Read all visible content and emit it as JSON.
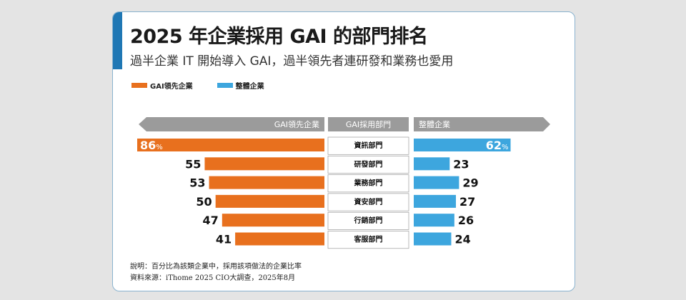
{
  "title": "2025 年企業採用 GAI 的部門排名",
  "subtitle": "過半企業 IT 開始導入 GAI，過半領先者連研發和業務也愛用",
  "colors": {
    "leader": "#e8701e",
    "overall": "#3da6de",
    "header": "#9b9b9b",
    "accent": "#1f77b4"
  },
  "chart_data": {
    "type": "bar",
    "categories": [
      "資訊部門",
      "研發部門",
      "業務部門",
      "資安部門",
      "行銷部門",
      "客服部門"
    ],
    "series": [
      {
        "name": "GAI領先企業",
        "values": [
          86,
          55,
          53,
          50,
          47,
          41
        ]
      },
      {
        "name": "整體企業",
        "values": [
          62,
          23,
          29,
          27,
          26,
          24
        ]
      }
    ],
    "percent_suffix": "%",
    "header_labels": {
      "left": "GAI領先企業",
      "center": "GAI採用部門",
      "right": "整體企業"
    },
    "legend": [
      "GAI領先企業",
      "整體企業"
    ],
    "xlim": [
      0,
      86
    ]
  },
  "notes": {
    "note1": "說明：百分比為該類企業中，採用該項做法的企業比率",
    "note2": "資料來源：iThome 2025 CIO大調查，2025年8月"
  }
}
